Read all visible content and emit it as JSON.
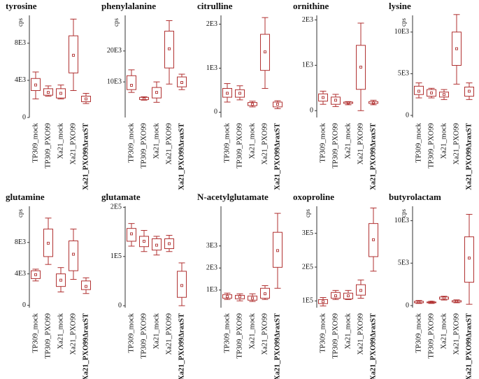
{
  "chart_data": [
    {
      "type": "box",
      "title": "tyrosine",
      "y_label": "cps",
      "color": "#b03030",
      "categories": [
        "TP309_mock",
        "TP309_PXO99",
        "Xa21_mock",
        "Xa21_PXO99",
        "Xa21_PXO99ΔraxST"
      ],
      "low": [
        2000,
        2300,
        2000,
        2900,
        1500
      ],
      "q1": [
        2900,
        2400,
        2100,
        4800,
        1700
      ],
      "q3": [
        4200,
        3100,
        3100,
        8800,
        2300
      ],
      "high": [
        4900,
        3400,
        3500,
        10600,
        2600
      ],
      "mean": [
        3500,
        2700,
        2600,
        6700,
        2000
      ],
      "ylim": [
        0,
        11000
      ],
      "yticks": [
        0,
        {
          "value": 4000,
          "label": "4E3"
        },
        {
          "value": 8000,
          "label": "8E3"
        }
      ]
    },
    {
      "type": "box",
      "title": "phenylalanine",
      "y_label": "cps",
      "color": "#b03030",
      "categories": [
        "TP309_mock",
        "TP309_PXO99",
        "Xa21_mock",
        "Xa21_PXO99",
        "Xa21_PXO99ΔraxST"
      ],
      "low": [
        6600,
        4100,
        3400,
        9300,
        7500
      ],
      "q1": [
        7500,
        4300,
        4800,
        14500,
        8400
      ],
      "q3": [
        12000,
        5000,
        8200,
        26400,
        11600
      ],
      "high": [
        13900,
        5200,
        10000,
        29800,
        12500
      ],
      "mean": [
        8900,
        4500,
        6600,
        20700,
        9800
      ],
      "ylim": [
        -1500,
        31500
      ],
      "yticks": [
        {
          "value": 10000,
          "label": "10E3"
        },
        {
          "value": 20000,
          "label": "20E3"
        }
      ]
    },
    {
      "type": "box",
      "title": "citrulline",
      "color": "#b03030",
      "categories": [
        "TP309_mock",
        "TP309_PXO99",
        "Xa21_mock",
        "Xa21_PXO99",
        "Xa21_PXO99ΔraxST"
      ],
      "low": [
        230,
        280,
        120,
        540,
        80
      ],
      "q1": [
        340,
        340,
        150,
        950,
        120
      ],
      "q3": [
        540,
        510,
        220,
        1770,
        230
      ],
      "high": [
        650,
        600,
        250,
        2150,
        260
      ],
      "mean": [
        430,
        430,
        180,
        1370,
        180
      ],
      "ylim": [
        -120,
        2200
      ],
      "yticks": [
        0,
        {
          "value": 1000,
          "label": "1E3"
        },
        {
          "value": 2000,
          "label": "2E3"
        }
      ]
    },
    {
      "type": "box",
      "title": "ornithine",
      "color": "#b03030",
      "categories": [
        "TP309_mock",
        "TP309_PXO99",
        "Xa21_mock",
        "Xa21_PXO99",
        "Xa21_PXO99ΔraxST"
      ],
      "low": [
        140,
        90,
        130,
        0,
        130
      ],
      "q1": [
        210,
        140,
        160,
        470,
        160
      ],
      "q3": [
        370,
        300,
        190,
        1440,
        200
      ],
      "high": [
        430,
        360,
        200,
        1930,
        230
      ],
      "mean": [
        290,
        230,
        170,
        960,
        170
      ],
      "ylim": [
        -150,
        2100
      ],
      "yticks": [
        0,
        {
          "value": 1000,
          "label": "1E3"
        },
        {
          "value": 2000,
          "label": "2E3"
        }
      ]
    },
    {
      "type": "box",
      "title": "lysine",
      "y_label": "cps",
      "color": "#b03030",
      "categories": [
        "TP309_mock",
        "TP309_PXO99",
        "Xa21_mock",
        "Xa21_PXO99",
        "Xa21_PXO99ΔraxST"
      ],
      "low": [
        2100,
        2100,
        1900,
        3750,
        1900
      ],
      "q1": [
        2500,
        2300,
        2200,
        6000,
        2300
      ],
      "q3": [
        3500,
        3100,
        2800,
        10000,
        3400
      ],
      "high": [
        3900,
        3250,
        3100,
        12100,
        3900
      ],
      "mean": [
        2900,
        2700,
        2500,
        8000,
        2900
      ],
      "ylim": [
        -250,
        12000
      ],
      "yticks": [
        0,
        {
          "value": 5000,
          "label": "5E3"
        },
        {
          "value": 10000,
          "label": "10E3"
        }
      ]
    },
    {
      "type": "box",
      "title": "glutamine",
      "y_label": "cps",
      "color": "#b03030",
      "categories": [
        "TP309_mock",
        "TP309_PXO99",
        "Xa21_mock",
        "Xa21_PXO99",
        "Xa21_PXO99ΔraxST"
      ],
      "low": [
        3100,
        5200,
        1700,
        3300,
        1500
      ],
      "q1": [
        3400,
        6200,
        2400,
        4400,
        2000
      ],
      "q3": [
        4400,
        9700,
        4000,
        8200,
        3100
      ],
      "high": [
        4600,
        11100,
        4800,
        9700,
        3500
      ],
      "mean": [
        3900,
        7900,
        3200,
        6500,
        2400
      ],
      "ylim": [
        -300,
        12600
      ],
      "yticks": [
        0,
        {
          "value": 4000,
          "label": "4E3"
        },
        {
          "value": 8000,
          "label": "8E3"
        }
      ]
    },
    {
      "type": "box",
      "title": "glutamate",
      "color": "#b03030",
      "categories": [
        "TP309_mock",
        "TP309_PXO99",
        "Xa21_mock",
        "Xa21_PXO99",
        "Xa21_PXO99ΔraxST"
      ],
      "low": [
        121000,
        110000,
        103000,
        110000,
        0
      ],
      "q1": [
        131000,
        120000,
        113000,
        116000,
        17000
      ],
      "q3": [
        157000,
        141000,
        136000,
        136000,
        70000
      ],
      "high": [
        167000,
        153000,
        141000,
        143000,
        87000
      ],
      "mean": [
        146000,
        131000,
        123000,
        126000,
        41000
      ],
      "ylim": [
        -4000,
        202000
      ],
      "yticks": [
        0,
        {
          "value": 100000,
          "label": "1E5"
        },
        {
          "value": 200000,
          "label": "2E5"
        }
      ]
    },
    {
      "type": "box",
      "title": "N-acetylglutamate",
      "color": "#b03030",
      "categories": [
        "TP309_mock",
        "TP309_PXO99",
        "Xa21_mock",
        "Xa21_PXO99",
        "Xa21_PXO99ΔraxST"
      ],
      "low": [
        570,
        510,
        480,
        570,
        1080
      ],
      "q1": [
        630,
        600,
        540,
        630,
        2030
      ],
      "q3": [
        790,
        760,
        730,
        1080,
        3620
      ],
      "high": [
        860,
        830,
        830,
        1200,
        4480
      ],
      "mean": [
        700,
        700,
        630,
        830,
        2790
      ],
      "ylim": [
        200,
        4800
      ],
      "yticks": [
        {
          "value": 1000,
          "label": "1E3"
        },
        {
          "value": 2000,
          "label": "2E3"
        },
        {
          "value": 3000,
          "label": "3E3"
        }
      ]
    },
    {
      "type": "box",
      "title": "oxoproline",
      "y_label": "cps",
      "color": "#b03030",
      "categories": [
        "TP309_mock",
        "TP309_PXO99",
        "Xa21_mock",
        "Xa21_PXO99",
        "Xa21_PXO99ΔraxST"
      ],
      "low": [
        85000,
        104000,
        104000,
        108000,
        188000
      ],
      "q1": [
        92000,
        108000,
        106000,
        117000,
        231000
      ],
      "q3": [
        104000,
        125000,
        123000,
        148000,
        329000
      ],
      "high": [
        110000,
        131000,
        131000,
        162000,
        375000
      ],
      "mean": [
        98000,
        115000,
        115000,
        131000,
        281000
      ],
      "ylim": [
        80000,
        380000
      ],
      "yticks": [
        {
          "value": 100000,
          "label": "1E5"
        },
        {
          "value": 200000,
          "label": "2E5"
        },
        {
          "value": 300000,
          "label": "3E5"
        }
      ]
    },
    {
      "type": "box",
      "title": "butyrolactam",
      "y_label": "cps",
      "color": "#b03030",
      "categories": [
        "TP309_mock",
        "TP309_PXO99",
        "Xa21_mock",
        "Xa21_PXO99",
        "Xa21_PXO99ΔraxST"
      ],
      "low": [
        250,
        250,
        650,
        330,
        150
      ],
      "q1": [
        330,
        330,
        750,
        420,
        2750
      ],
      "q3": [
        500,
        420,
        1000,
        580,
        8100
      ],
      "high": [
        600,
        500,
        1100,
        670,
        10750
      ],
      "mean": [
        400,
        400,
        900,
        500,
        5600
      ],
      "ylim": [
        -250,
        11700
      ],
      "yticks": [
        0,
        {
          "value": 5000,
          "label": "5E3"
        },
        {
          "value": 10000,
          "label": "10E3"
        }
      ]
    }
  ]
}
